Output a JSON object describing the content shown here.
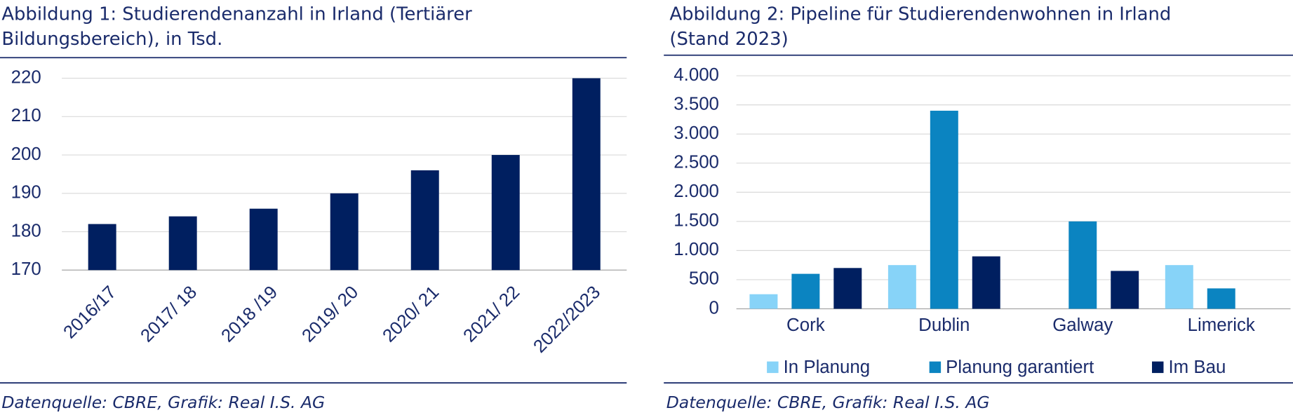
{
  "chart_data": [
    {
      "type": "bar",
      "title": [
        "Abbildung 1: Studierendenanzahl in Irland (Tertiärer",
        "Bildungsbereich), in Tsd."
      ],
      "categories": [
        "2016/17",
        "2017/ 18",
        "2018 /19",
        "2019/ 20",
        "2020/ 21",
        "2021/ 22",
        "2022/2023"
      ],
      "series": [
        {
          "name": null,
          "color": "#001f60",
          "values": [
            182,
            184,
            186,
            190,
            196,
            200,
            220
          ]
        }
      ],
      "ylim": [
        170,
        220
      ],
      "yticks": [
        170,
        180,
        190,
        200,
        210,
        220
      ],
      "grid": true,
      "source": "Datenquelle: CBRE, Grafik: Real I.S. AG"
    },
    {
      "type": "bar",
      "title": [
        "Abbildung 2: Pipeline für Studierendenwohnen in Irland",
        "(Stand 2023)"
      ],
      "categories": [
        "Cork",
        "Dublin",
        "Galway",
        "Limerick"
      ],
      "series": [
        {
          "name": "In Planung",
          "color": "#87d3f8",
          "values": [
            250,
            750,
            null,
            750
          ]
        },
        {
          "name": "Planung garantiert",
          "color": "#0b84c1",
          "values": [
            600,
            3400,
            1500,
            350
          ]
        },
        {
          "name": "Im Bau",
          "color": "#001f60",
          "values": [
            700,
            900,
            650,
            null
          ]
        }
      ],
      "ylim": [
        0,
        4000
      ],
      "yticks": [
        0,
        500,
        {
          "value": 1000,
          "label": "1.000"
        },
        {
          "value": 1500,
          "label": "1.500"
        },
        {
          "value": 2000,
          "label": "2.000"
        },
        {
          "value": 2500,
          "label": "2.500"
        },
        {
          "value": 3000,
          "label": "3.000"
        },
        {
          "value": 3500,
          "label": "3.500"
        },
        {
          "value": 4000,
          "label": "4.000"
        }
      ],
      "grid": true,
      "legend": "bottom",
      "source": "Datenquelle: CBRE, Grafik: Real I.S. AG"
    }
  ]
}
